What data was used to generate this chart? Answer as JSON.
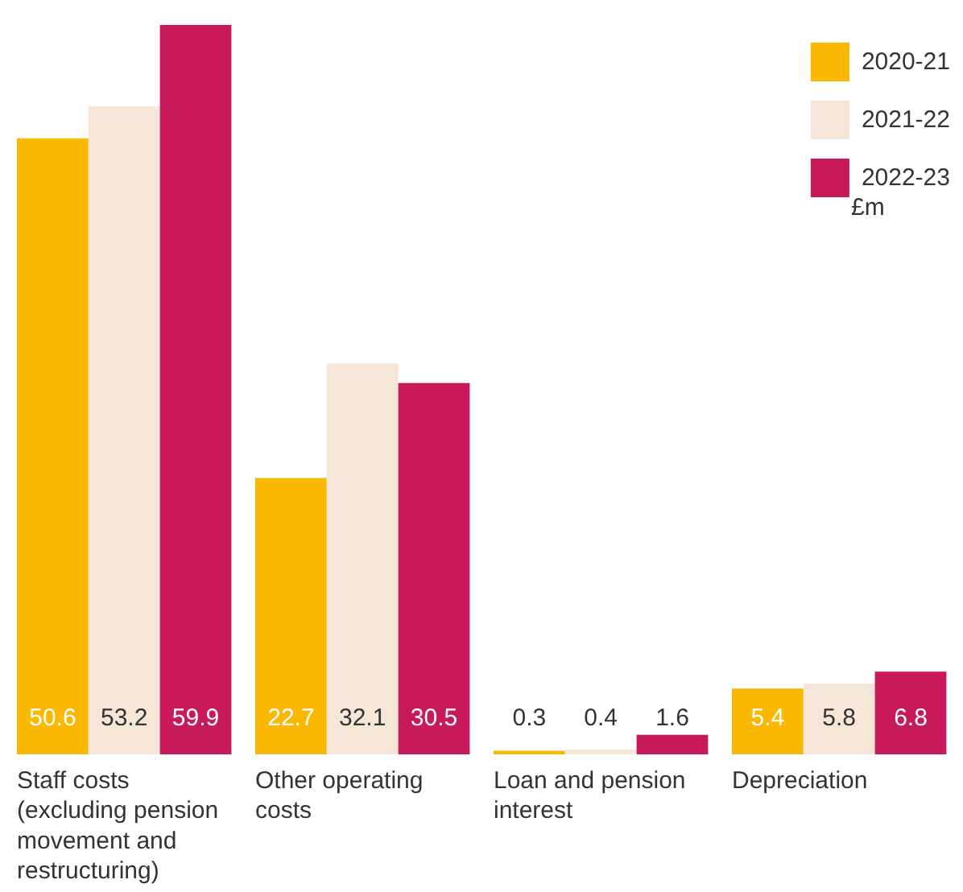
{
  "chart_data": {
    "type": "bar",
    "categories": [
      "Staff costs (excluding pension movement and restructuring)",
      "Other operating costs",
      "Loan and pension interest",
      "Depreciation"
    ],
    "series": [
      {
        "name": "2020-21",
        "color": "#fbb800",
        "values": [
          50.6,
          22.7,
          0.3,
          5.4
        ]
      },
      {
        "name": "2021-22",
        "color": "#f5e6d8",
        "values": [
          53.2,
          32.1,
          0.4,
          5.8
        ]
      },
      {
        "name": "2022-23",
        "color": "#c81a5a",
        "values": [
          59.9,
          30.5,
          1.6,
          6.8
        ]
      }
    ],
    "data_labels": true,
    "legend": "top right",
    "grid": false,
    "annotations": [
      "£m"
    ]
  }
}
